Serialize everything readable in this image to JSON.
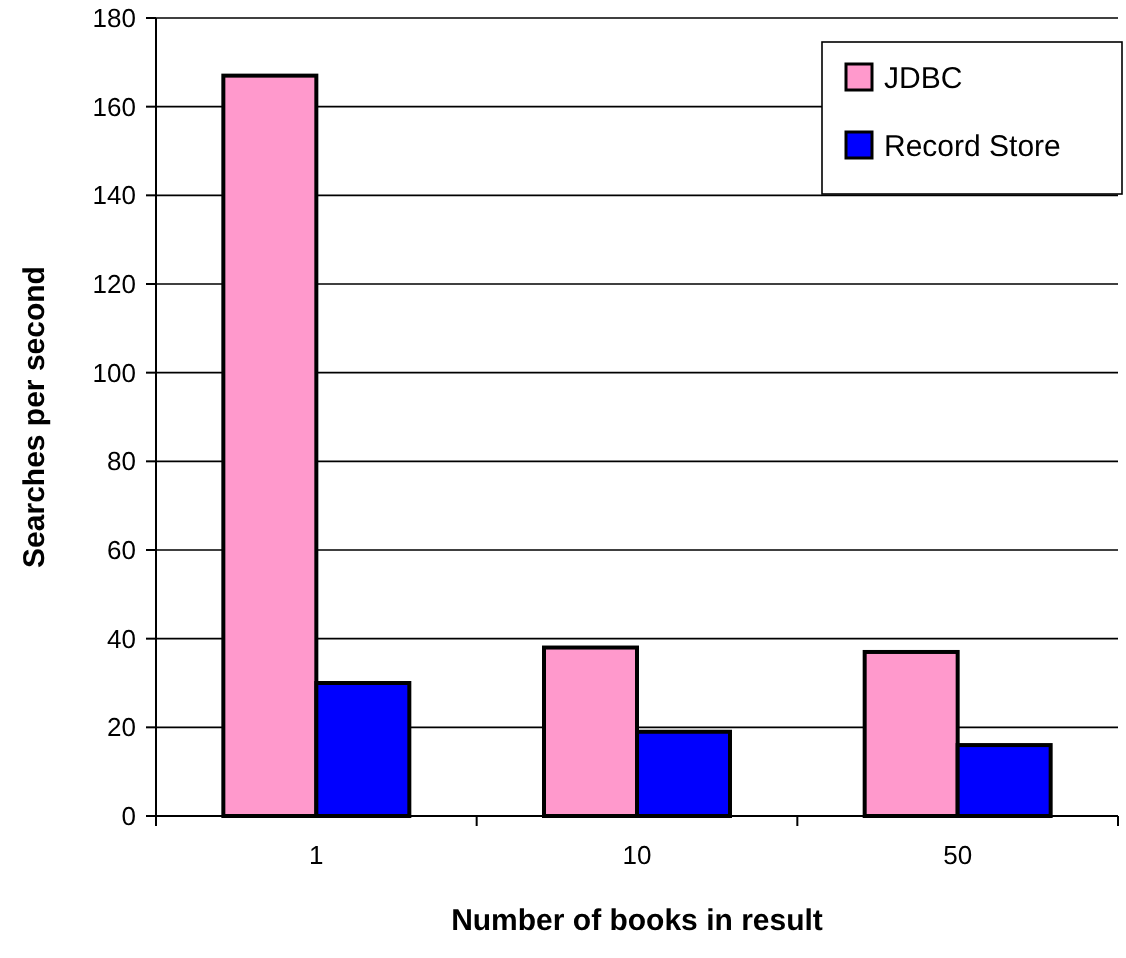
{
  "chart_data": {
    "type": "bar",
    "xlabel": "Number of books in result",
    "ylabel": "Searches per second",
    "categories": [
      "1",
      "10",
      "50"
    ],
    "series": [
      {
        "name": "JDBC",
        "color": "#ff99cc",
        "values": [
          167,
          38,
          37
        ]
      },
      {
        "name": "Record Store",
        "color": "#0000ff",
        "values": [
          30,
          19,
          16
        ]
      }
    ],
    "ylim": [
      0,
      180
    ],
    "yticks": [
      0,
      20,
      40,
      60,
      80,
      100,
      120,
      140,
      160,
      180
    ],
    "grid": "y",
    "legend": "top right"
  }
}
